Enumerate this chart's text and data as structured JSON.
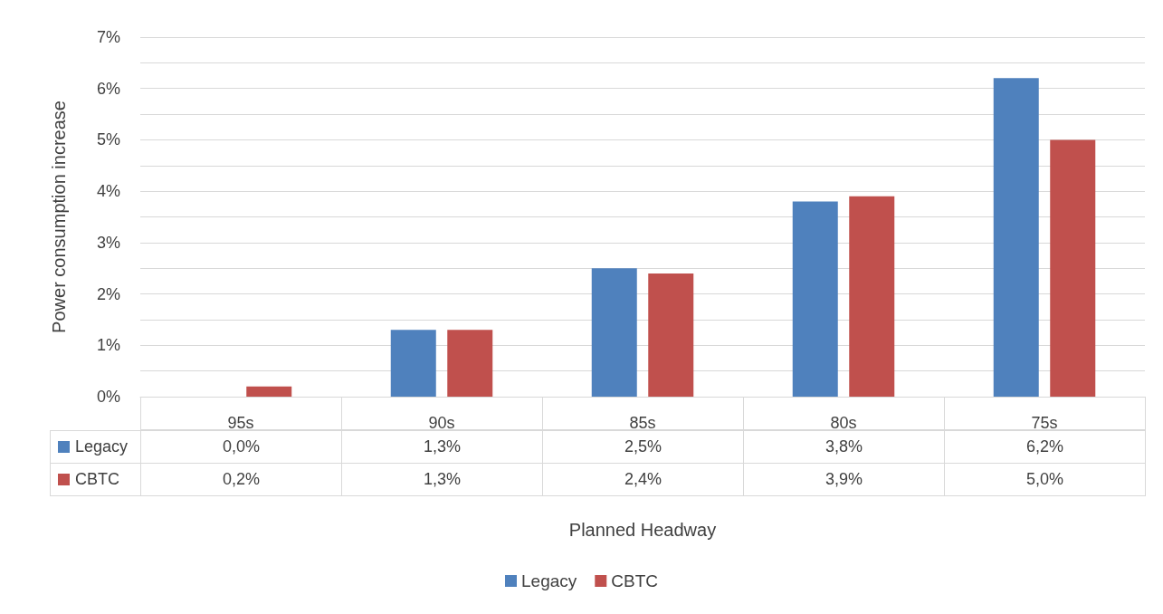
{
  "chart_data": {
    "type": "bar",
    "xlabel": "Planned Headway",
    "ylabel": "Power consumption increase",
    "categories": [
      "95s",
      "90s",
      "85s",
      "80s",
      "75s"
    ],
    "series": [
      {
        "name": "Legacy",
        "color": "#4f81bd",
        "values": [
          0.0,
          1.3,
          2.5,
          3.8,
          6.2
        ],
        "value_labels": [
          "0,0%",
          "1,3%",
          "2,5%",
          "3,8%",
          "6,2%"
        ]
      },
      {
        "name": "CBTC",
        "color": "#c0504d",
        "values": [
          0.2,
          1.3,
          2.4,
          3.9,
          5.0
        ],
        "value_labels": [
          "0,2%",
          "1,3%",
          "2,4%",
          "3,9%",
          "5,0%"
        ]
      }
    ],
    "ylim": [
      0,
      7
    ],
    "yticks": [
      {
        "value": 0,
        "label": "0%"
      },
      {
        "value": 0.5,
        "label": null
      },
      {
        "value": 1,
        "label": "1%"
      },
      {
        "value": 1.5,
        "label": null
      },
      {
        "value": 2,
        "label": "2%"
      },
      {
        "value": 2.5,
        "label": null
      },
      {
        "value": 3,
        "label": "3%"
      },
      {
        "value": 3.5,
        "label": null
      },
      {
        "value": 4,
        "label": "4%"
      },
      {
        "value": 4.5,
        "label": null
      },
      {
        "value": 5,
        "label": "5%"
      },
      {
        "value": 5.5,
        "label": null
      },
      {
        "value": 6,
        "label": "6%"
      },
      {
        "value": 6.5,
        "label": null
      },
      {
        "value": 7,
        "label": "7%"
      }
    ],
    "grid": "y",
    "legend": "bottom"
  }
}
